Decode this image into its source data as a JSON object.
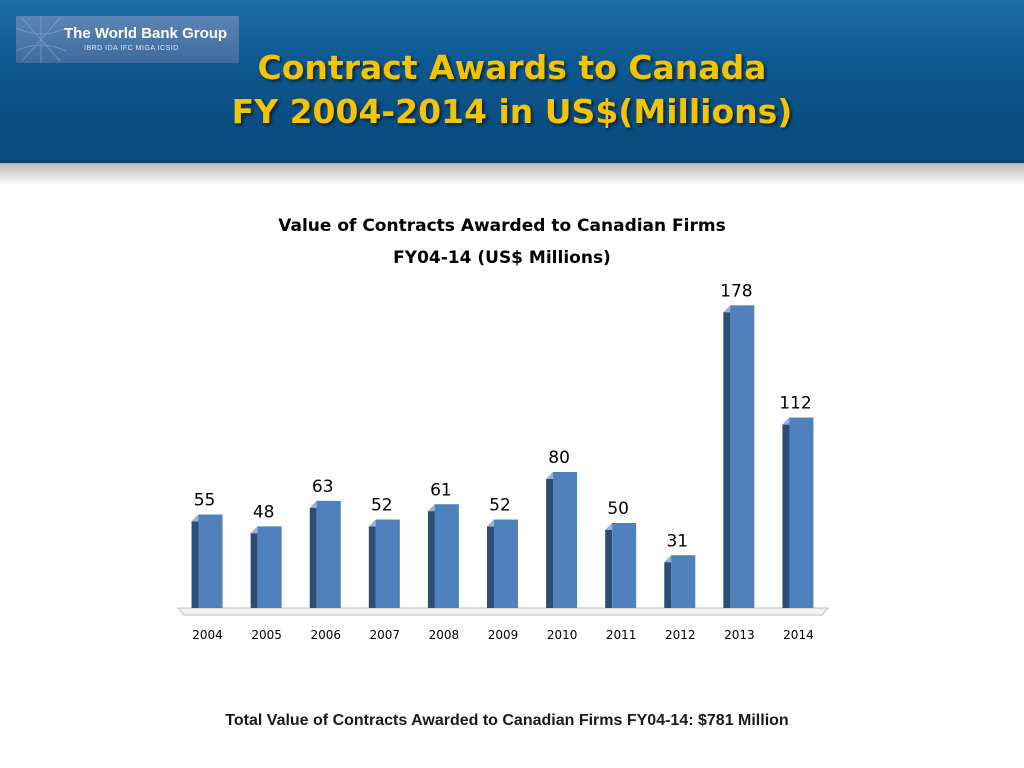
{
  "header": {
    "logo_name": "The World Bank Group",
    "logo_members": "IBRD   IDA   IFC   MIGA   ICSID",
    "title_line1": "Contract Awards to Canada",
    "title_line2": "FY 2004-2014 in US$(Millions)"
  },
  "chart_data": {
    "type": "bar",
    "title_line1": "Value of Contracts Awarded to Canadian Firms",
    "title_line2": "FY04-14 (US$ Millions)",
    "categories": [
      "2004",
      "2005",
      "2006",
      "2007",
      "2008",
      "2009",
      "2010",
      "2011",
      "2012",
      "2013",
      "2014"
    ],
    "values": [
      55,
      48,
      63,
      52,
      61,
      52,
      80,
      50,
      31,
      178,
      112
    ],
    "xlabel": "",
    "ylabel": "",
    "ylim": [
      0,
      180
    ],
    "grid": false,
    "legend": "none",
    "colors": {
      "bar_front": "#4f81bd",
      "bar_side": "#2c4d75",
      "bar_top": "#95b3d7"
    }
  },
  "footer": {
    "total_text": "Total Value of Contracts Awarded to Canadian Firms FY04-14: $781 Million"
  }
}
